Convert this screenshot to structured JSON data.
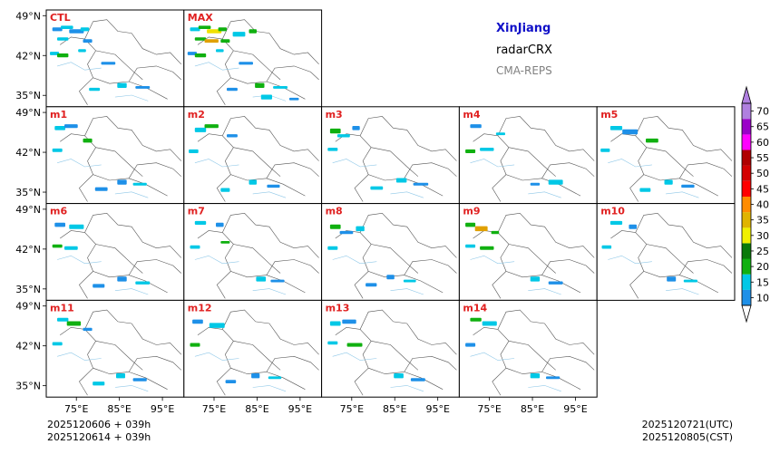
{
  "header": {
    "region": "XinJiang",
    "product": "radarCRX",
    "system": "CMA-REPS",
    "region_color": "#1010c8",
    "system_color": "#808080"
  },
  "footer": {
    "init_utc": "2025120606  +  039h",
    "init_cst": "2025120614  +  039h",
    "valid_utc": "2025120721(UTC)",
    "valid_cst": "2025120805(CST)"
  },
  "chart_data": {
    "type": "heatmap",
    "title": "radarCRX",
    "x_axis": {
      "range": [
        68,
        100
      ],
      "ticks": [
        75,
        85,
        95
      ],
      "tick_labels": [
        "75°E",
        "85°E",
        "95°E"
      ]
    },
    "y_axis": {
      "range": [
        33,
        50
      ],
      "ticks": [
        35,
        42,
        49
      ],
      "tick_labels": [
        "35°N",
        "42°N",
        "49°N"
      ]
    },
    "panel_label_color": "#e02020",
    "panels": [
      {
        "label": "CTL",
        "row": 0,
        "col": 0,
        "cells": [
          [
            0.08,
            0.2,
            "#1e90e8"
          ],
          [
            0.15,
            0.18,
            "#00c8e6"
          ],
          [
            0.22,
            0.22,
            "#1e90e8"
          ],
          [
            0.28,
            0.2,
            "#00c8e6"
          ],
          [
            0.12,
            0.3,
            "#00c8e6"
          ],
          [
            0.3,
            0.32,
            "#1e90e8"
          ],
          [
            0.06,
            0.45,
            "#00c8e6"
          ],
          [
            0.12,
            0.47,
            "#10b010"
          ],
          [
            0.26,
            0.42,
            "#00c8e6"
          ],
          [
            0.45,
            0.55,
            "#1e90e8"
          ],
          [
            0.55,
            0.78,
            "#00c8e6"
          ],
          [
            0.7,
            0.8,
            "#1e90e8"
          ],
          [
            0.35,
            0.82,
            "#00c8e6"
          ]
        ]
      },
      {
        "label": "MAX",
        "row": 0,
        "col": 1,
        "cells": [
          [
            0.08,
            0.2,
            "#00c8e6"
          ],
          [
            0.15,
            0.18,
            "#10b010"
          ],
          [
            0.22,
            0.22,
            "#f0e000"
          ],
          [
            0.28,
            0.2,
            "#10b010"
          ],
          [
            0.4,
            0.25,
            "#00c8e6"
          ],
          [
            0.5,
            0.22,
            "#10b010"
          ],
          [
            0.12,
            0.3,
            "#10b010"
          ],
          [
            0.2,
            0.32,
            "#e0a000"
          ],
          [
            0.3,
            0.32,
            "#10b010"
          ],
          [
            0.06,
            0.45,
            "#1e90e8"
          ],
          [
            0.12,
            0.47,
            "#10b010"
          ],
          [
            0.26,
            0.42,
            "#00c8e6"
          ],
          [
            0.45,
            0.55,
            "#1e90e8"
          ],
          [
            0.55,
            0.78,
            "#10b010"
          ],
          [
            0.7,
            0.8,
            "#00c8e6"
          ],
          [
            0.35,
            0.82,
            "#1e90e8"
          ],
          [
            0.6,
            0.9,
            "#00c8e6"
          ],
          [
            0.8,
            0.92,
            "#1e90e8"
          ]
        ]
      },
      {
        "label": "m1",
        "row": 1,
        "col": 0,
        "cells": [
          [
            0.1,
            0.22,
            "#00c8e6"
          ],
          [
            0.18,
            0.2,
            "#1e90e8"
          ],
          [
            0.3,
            0.35,
            "#10b010"
          ],
          [
            0.08,
            0.45,
            "#00c8e6"
          ],
          [
            0.55,
            0.78,
            "#1e90e8"
          ],
          [
            0.68,
            0.8,
            "#00c8e6"
          ],
          [
            0.4,
            0.85,
            "#1e90e8"
          ]
        ]
      },
      {
        "label": "m2",
        "row": 1,
        "col": 1,
        "cells": [
          [
            0.12,
            0.24,
            "#00c8e6"
          ],
          [
            0.2,
            0.2,
            "#10b010"
          ],
          [
            0.35,
            0.3,
            "#1e90e8"
          ],
          [
            0.07,
            0.46,
            "#00c8e6"
          ],
          [
            0.5,
            0.78,
            "#00c8e6"
          ],
          [
            0.65,
            0.82,
            "#1e90e8"
          ],
          [
            0.3,
            0.86,
            "#00c8e6"
          ]
        ]
      },
      {
        "label": "m3",
        "row": 1,
        "col": 2,
        "cells": [
          [
            0.1,
            0.25,
            "#10b010"
          ],
          [
            0.16,
            0.3,
            "#00c8e6"
          ],
          [
            0.25,
            0.22,
            "#1e90e8"
          ],
          [
            0.08,
            0.44,
            "#00c8e6"
          ],
          [
            0.58,
            0.76,
            "#00c8e6"
          ],
          [
            0.72,
            0.8,
            "#1e90e8"
          ],
          [
            0.4,
            0.84,
            "#00c8e6"
          ]
        ]
      },
      {
        "label": "m4",
        "row": 1,
        "col": 3,
        "cells": [
          [
            0.12,
            0.2,
            "#1e90e8"
          ],
          [
            0.3,
            0.28,
            "#00c8e6"
          ],
          [
            0.08,
            0.46,
            "#10b010"
          ],
          [
            0.2,
            0.44,
            "#00c8e6"
          ],
          [
            0.55,
            0.8,
            "#1e90e8"
          ],
          [
            0.7,
            0.78,
            "#00c8e6"
          ]
        ]
      },
      {
        "label": "m5",
        "row": 1,
        "col": 4,
        "cells": [
          [
            0.14,
            0.22,
            "#00c8e6"
          ],
          [
            0.24,
            0.26,
            "#1e90e8"
          ],
          [
            0.4,
            0.35,
            "#10b010"
          ],
          [
            0.06,
            0.45,
            "#00c8e6"
          ],
          [
            0.52,
            0.78,
            "#00c8e6"
          ],
          [
            0.66,
            0.82,
            "#1e90e8"
          ],
          [
            0.35,
            0.86,
            "#00c8e6"
          ]
        ]
      },
      {
        "label": "m6",
        "row": 2,
        "col": 0,
        "cells": [
          [
            0.1,
            0.22,
            "#1e90e8"
          ],
          [
            0.22,
            0.24,
            "#00c8e6"
          ],
          [
            0.08,
            0.44,
            "#10b010"
          ],
          [
            0.18,
            0.46,
            "#00c8e6"
          ],
          [
            0.55,
            0.78,
            "#1e90e8"
          ],
          [
            0.7,
            0.82,
            "#00c8e6"
          ],
          [
            0.38,
            0.85,
            "#1e90e8"
          ]
        ]
      },
      {
        "label": "m7",
        "row": 2,
        "col": 1,
        "cells": [
          [
            0.12,
            0.2,
            "#00c8e6"
          ],
          [
            0.26,
            0.22,
            "#1e90e8"
          ],
          [
            0.08,
            0.45,
            "#00c8e6"
          ],
          [
            0.3,
            0.4,
            "#10b010"
          ],
          [
            0.56,
            0.78,
            "#00c8e6"
          ],
          [
            0.68,
            0.8,
            "#1e90e8"
          ]
        ]
      },
      {
        "label": "m8",
        "row": 2,
        "col": 2,
        "cells": [
          [
            0.1,
            0.24,
            "#10b010"
          ],
          [
            0.18,
            0.3,
            "#1e90e8"
          ],
          [
            0.28,
            0.26,
            "#00c8e6"
          ],
          [
            0.08,
            0.46,
            "#00c8e6"
          ],
          [
            0.5,
            0.76,
            "#1e90e8"
          ],
          [
            0.64,
            0.8,
            "#00c8e6"
          ],
          [
            0.36,
            0.84,
            "#1e90e8"
          ]
        ]
      },
      {
        "label": "m9",
        "row": 2,
        "col": 3,
        "cells": [
          [
            0.08,
            0.22,
            "#10b010"
          ],
          [
            0.16,
            0.26,
            "#e0a000"
          ],
          [
            0.26,
            0.3,
            "#10b010"
          ],
          [
            0.08,
            0.44,
            "#00c8e6"
          ],
          [
            0.2,
            0.46,
            "#10b010"
          ],
          [
            0.55,
            0.78,
            "#00c8e6"
          ],
          [
            0.7,
            0.82,
            "#1e90e8"
          ]
        ]
      },
      {
        "label": "m10",
        "row": 2,
        "col": 4,
        "cells": [
          [
            0.14,
            0.2,
            "#00c8e6"
          ],
          [
            0.26,
            0.24,
            "#1e90e8"
          ],
          [
            0.07,
            0.45,
            "#00c8e6"
          ],
          [
            0.54,
            0.78,
            "#1e90e8"
          ],
          [
            0.68,
            0.8,
            "#00c8e6"
          ]
        ]
      },
      {
        "label": "m11",
        "row": 3,
        "col": 0,
        "cells": [
          [
            0.12,
            0.2,
            "#00c8e6"
          ],
          [
            0.2,
            0.24,
            "#10b010"
          ],
          [
            0.3,
            0.3,
            "#1e90e8"
          ],
          [
            0.08,
            0.45,
            "#00c8e6"
          ],
          [
            0.54,
            0.78,
            "#00c8e6"
          ],
          [
            0.68,
            0.82,
            "#1e90e8"
          ],
          [
            0.38,
            0.86,
            "#00c8e6"
          ]
        ]
      },
      {
        "label": "m12",
        "row": 3,
        "col": 1,
        "cells": [
          [
            0.1,
            0.22,
            "#1e90e8"
          ],
          [
            0.24,
            0.26,
            "#00c8e6"
          ],
          [
            0.08,
            0.46,
            "#10b010"
          ],
          [
            0.52,
            0.78,
            "#1e90e8"
          ],
          [
            0.66,
            0.8,
            "#00c8e6"
          ],
          [
            0.34,
            0.84,
            "#1e90e8"
          ]
        ]
      },
      {
        "label": "m13",
        "row": 3,
        "col": 2,
        "cells": [
          [
            0.1,
            0.24,
            "#00c8e6"
          ],
          [
            0.2,
            0.22,
            "#1e90e8"
          ],
          [
            0.08,
            0.44,
            "#00c8e6"
          ],
          [
            0.24,
            0.46,
            "#10b010"
          ],
          [
            0.56,
            0.78,
            "#00c8e6"
          ],
          [
            0.7,
            0.82,
            "#1e90e8"
          ]
        ]
      },
      {
        "label": "m14",
        "row": 3,
        "col": 3,
        "cells": [
          [
            0.12,
            0.2,
            "#10b010"
          ],
          [
            0.22,
            0.24,
            "#00c8e6"
          ],
          [
            0.08,
            0.46,
            "#1e90e8"
          ],
          [
            0.55,
            0.78,
            "#00c8e6"
          ],
          [
            0.68,
            0.8,
            "#1e90e8"
          ]
        ]
      }
    ],
    "colorbar": {
      "levels": [
        10,
        15,
        20,
        25,
        30,
        35,
        40,
        45,
        50,
        55,
        60,
        65,
        70
      ],
      "colors": [
        "#1e90e8",
        "#00c8e6",
        "#10b010",
        "#0a7a0a",
        "#f0f000",
        "#e0b400",
        "#ff8c00",
        "#ff0000",
        "#d40000",
        "#b00000",
        "#ff00ff",
        "#9a00c8",
        "#b080e0"
      ]
    }
  }
}
